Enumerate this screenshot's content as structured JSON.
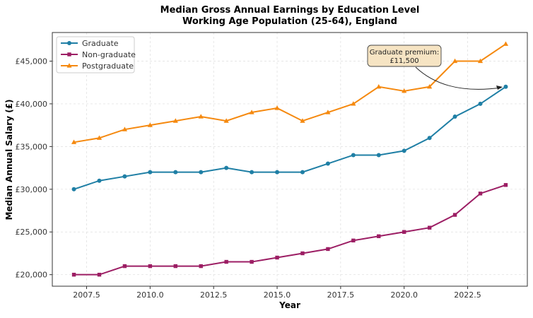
{
  "chart_data": {
    "type": "line",
    "title": "Median Gross Annual Earnings by Education Level",
    "subtitle": "Working Age Population (25-64), England",
    "xlabel": "Year",
    "ylabel": "Median Annual Salary (£)",
    "xlim": [
      2006.15,
      2024.85
    ],
    "ylim": [
      18650,
      48350
    ],
    "xticks": [
      2007.5,
      2010.0,
      2012.5,
      2015.0,
      2017.5,
      2020.0,
      2022.5
    ],
    "xtick_labels": [
      "2007.5",
      "2010.0",
      "2012.5",
      "2015.0",
      "2017.5",
      "2020.0",
      "2022.5"
    ],
    "yticks": [
      20000,
      25000,
      30000,
      35000,
      40000,
      45000
    ],
    "ytick_labels": [
      "£20,000",
      "£25,000",
      "£30,000",
      "£35,000",
      "£40,000",
      "£45,000"
    ],
    "grid": true,
    "legend_position": "top-left",
    "x": [
      2007,
      2008,
      2009,
      2010,
      2011,
      2012,
      2013,
      2014,
      2015,
      2016,
      2017,
      2018,
      2019,
      2020,
      2021,
      2022,
      2023,
      2024
    ],
    "series": [
      {
        "name": "Graduate",
        "color": "#1f7fa5",
        "marker": "circle",
        "values": [
          30000,
          31000,
          31500,
          32000,
          32000,
          32000,
          32500,
          32000,
          32000,
          32000,
          33000,
          34000,
          34000,
          34500,
          36000,
          38500,
          40000,
          42000
        ]
      },
      {
        "name": "Non-graduate",
        "color": "#9c1e64",
        "marker": "square",
        "values": [
          20000,
          20000,
          21000,
          21000,
          21000,
          21000,
          21500,
          21500,
          22000,
          22500,
          23000,
          24000,
          24500,
          25000,
          25500,
          27000,
          29500,
          30500
        ]
      },
      {
        "name": "Postgraduate",
        "color": "#f5890f",
        "marker": "triangle",
        "values": [
          35500,
          36000,
          37000,
          37500,
          38000,
          38500,
          38000,
          39000,
          39500,
          38000,
          39000,
          40000,
          42000,
          41500,
          42000,
          45000,
          45000,
          47000
        ]
      }
    ],
    "annotation": {
      "line1": "Graduate premium:",
      "line2": "£11,500",
      "target_x": 2024,
      "target_y": 42000,
      "box_color": "#f6e4c3"
    }
  }
}
